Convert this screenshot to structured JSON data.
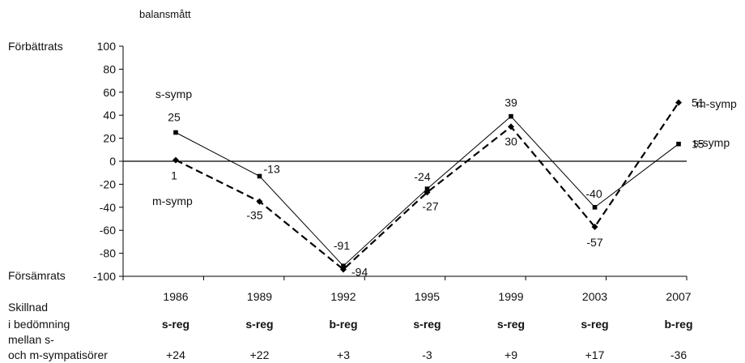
{
  "chart_data": {
    "type": "line",
    "ylabel": "balansmått",
    "y_top_label": "Förbättrats",
    "y_bottom_label": "Försämrats",
    "ylim": [
      -100,
      100
    ],
    "yticks": [
      100,
      80,
      60,
      40,
      20,
      0,
      -20,
      -40,
      -60,
      -80,
      -100
    ],
    "categories": [
      "1986",
      "1989",
      "1992",
      "1995",
      "1999",
      "2003",
      "2007"
    ],
    "series": [
      {
        "name": "s-symp",
        "values": [
          25,
          -13,
          -91,
          -24,
          39,
          -40,
          15
        ],
        "labels": [
          "25",
          "-13",
          "-91",
          "-24",
          "39",
          "-40",
          "15"
        ],
        "style": "solid",
        "marker": "square",
        "color": "#000000"
      },
      {
        "name": "m-symp",
        "values": [
          1,
          -35,
          -94,
          -27,
          30,
          -57,
          51
        ],
        "labels": [
          "1",
          "-35",
          "-94",
          "-27",
          "30",
          "-57",
          "51"
        ],
        "style": "dashed",
        "marker": "diamond",
        "color": "#000000"
      }
    ],
    "series_annotations": [
      "s-symp",
      "m-symp",
      "m-symp",
      "s-symp"
    ],
    "bottom_table": {
      "row_title_lines": [
        "Skillnad",
        "i bedömning",
        "mellan s-",
        "och m-sympatisörer"
      ],
      "regimes": [
        "s-reg",
        "s-reg",
        "b-reg",
        "s-reg",
        "s-reg",
        "s-reg",
        "b-reg"
      ],
      "differences": [
        "+24",
        "+22",
        "+3",
        "-3",
        "+9",
        "+17",
        "-36"
      ]
    }
  }
}
